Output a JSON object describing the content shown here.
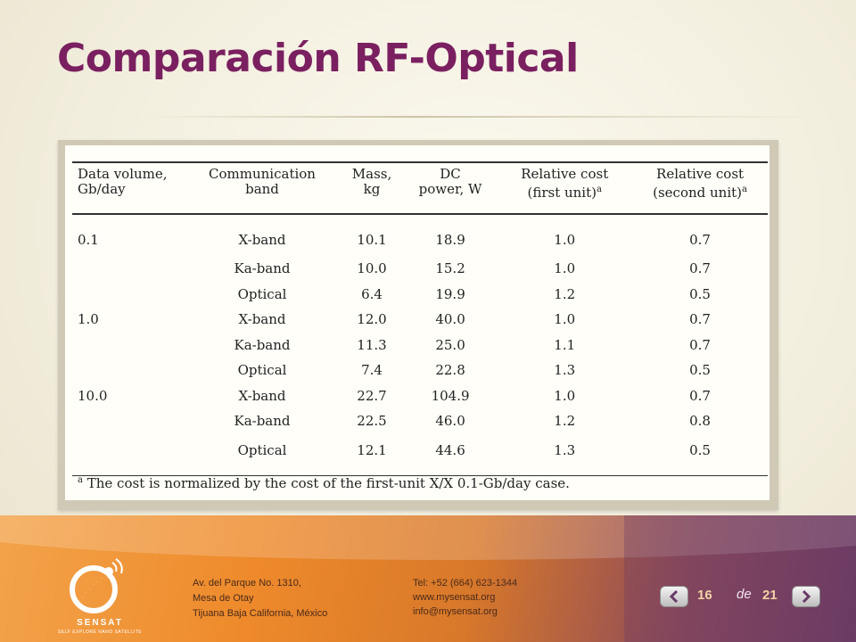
{
  "slide": {
    "title": "Comparación RF-Optical"
  },
  "table": {
    "headers": [
      [
        "Data volume,",
        "Gb/day"
      ],
      [
        "Communication",
        "band"
      ],
      [
        "Mass,",
        "kg"
      ],
      [
        "DC",
        "power, W"
      ],
      [
        "Relative cost",
        "(first unit)"
      ],
      [
        "Relative cost",
        "(second unit)"
      ]
    ],
    "header_sup": "a",
    "rows": [
      [
        "0.1",
        "X-band",
        "10.1",
        "18.9",
        "1.0",
        "0.7"
      ],
      [
        "",
        "Ka-band",
        "10.0",
        "15.2",
        "1.0",
        "0.7"
      ],
      [
        "",
        "Optical",
        "6.4",
        "19.9",
        "1.2",
        "0.5"
      ],
      [
        "1.0",
        "X-band",
        "12.0",
        "40.0",
        "1.0",
        "0.7"
      ],
      [
        "",
        "Ka-band",
        "11.3",
        "25.0",
        "1.1",
        "0.7"
      ],
      [
        "",
        "Optical",
        "7.4",
        "22.8",
        "1.3",
        "0.5"
      ],
      [
        "10.0",
        "X-band",
        "22.7",
        "104.9",
        "1.0",
        "0.7"
      ],
      [
        "",
        "Ka-band",
        "22.5",
        "46.0",
        "1.2",
        "0.8"
      ],
      [
        "",
        "Optical",
        "12.1",
        "44.6",
        "1.3",
        "0.5"
      ]
    ],
    "footnote_sup": "a",
    "footnote": "The cost is normalized by the cost of the first-unit X/X 0.1-Gb/day case."
  },
  "footer": {
    "logo_text": "SENSAT",
    "logo_subtext": "SELF EXPLORE NANO SATELLITE",
    "address": [
      "Av. del Parque No. 1310,",
      "Mesa de Otay",
      "Tijuana Baja California, México"
    ],
    "contact": [
      "Tel: +52 (664) 623-1344",
      "www.mysensat.org",
      "info@mysensat.org"
    ]
  },
  "pager": {
    "current": "16",
    "separator": "de",
    "total": "21"
  },
  "colors": {
    "title": "#7a2060",
    "footer_orange": "#ee8a2b",
    "footer_purple": "#6a3a66"
  },
  "icons": {
    "prev": "chevron-left-icon",
    "next": "chevron-right-icon",
    "logo": "sensat-logo-icon"
  }
}
